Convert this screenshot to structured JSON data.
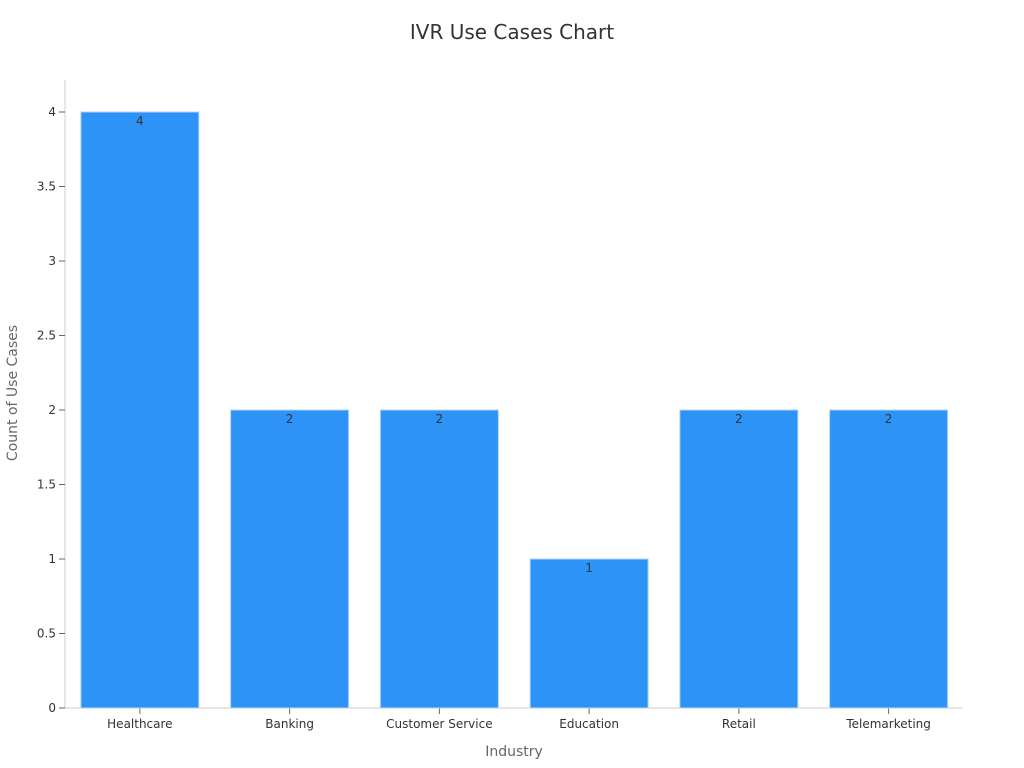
{
  "chart_data": {
    "type": "bar",
    "title": "IVR Use Cases Chart",
    "xlabel": "Industry",
    "ylabel": "Count of Use Cases",
    "categories": [
      "Healthcare",
      "Banking",
      "Customer Service",
      "Education",
      "Retail",
      "Telemarketing"
    ],
    "values": [
      4,
      2,
      2,
      1,
      2,
      2
    ],
    "data_labels": [
      "4",
      "2",
      "2",
      "1",
      "2",
      "2"
    ],
    "ylim": [
      0,
      4.2
    ],
    "yticks": [
      0,
      0.5,
      1,
      1.5,
      2,
      2.5,
      3,
      3.5,
      4
    ],
    "ytick_labels": [
      "0",
      "0.5",
      "1",
      "1.5",
      "2",
      "2.5",
      "3",
      "3.5",
      "4"
    ],
    "grid": false,
    "legend": "none",
    "bar_color": "#2e93f7",
    "bar_border_color": "#b3d4f5"
  }
}
